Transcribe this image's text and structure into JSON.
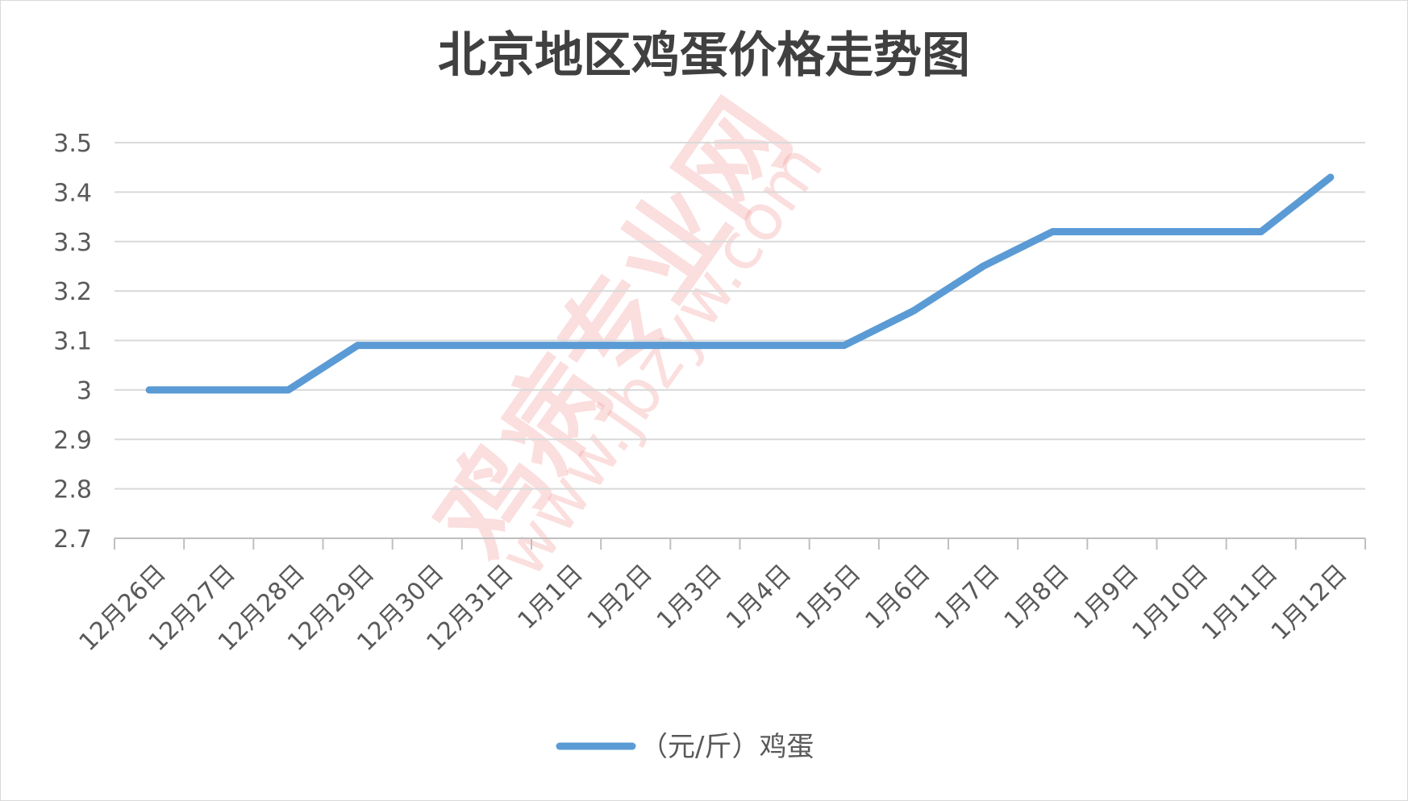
{
  "chart_data": {
    "type": "line",
    "title": "北京地区鸡蛋价格走势图",
    "categories": [
      "12月26日",
      "12月27日",
      "12月28日",
      "12月29日",
      "12月30日",
      "12月31日",
      "1月1日",
      "1月2日",
      "1月3日",
      "1月4日",
      "1月5日",
      "1月6日",
      "1月7日",
      "1月8日",
      "1月9日",
      "1月10日",
      "1月11日",
      "1月12日"
    ],
    "series": [
      {
        "name": "（元/斤）鸡蛋",
        "color": "#5b9bd5",
        "values": [
          3.0,
          3.0,
          3.0,
          3.09,
          3.09,
          3.09,
          3.09,
          3.09,
          3.09,
          3.09,
          3.09,
          3.16,
          3.25,
          3.32,
          3.32,
          3.32,
          3.32,
          3.43
        ]
      }
    ],
    "y_ticks": [
      "2.7",
      "2.8",
      "2.9",
      "3",
      "3.1",
      "3.2",
      "3.3",
      "3.4",
      "3.5"
    ],
    "ylim": [
      2.7,
      3.5
    ],
    "grid": true,
    "legend_position": "bottom"
  },
  "watermark": {
    "main": "鸡病专业网",
    "url": "www.jbzyw.com"
  }
}
